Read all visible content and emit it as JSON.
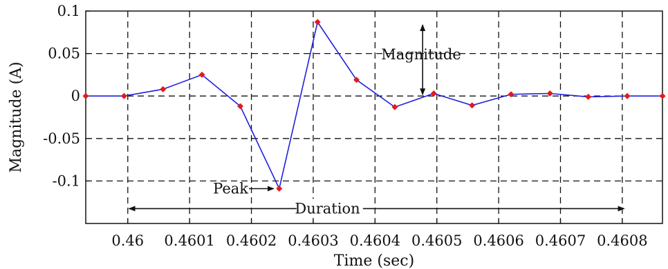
{
  "chart_data": {
    "type": "line",
    "xlabel": "Time (sec)",
    "ylabel": "Magnitude (A)",
    "xlim": [
      0.459932,
      0.460865
    ],
    "ylim": [
      -0.15,
      0.1
    ],
    "grid": true,
    "xticks": [
      0.46,
      0.4601,
      0.4602,
      0.4603,
      0.4604,
      0.4605,
      0.4606,
      0.4607,
      0.4608
    ],
    "xtick_labels": [
      "0.46",
      "0.4601",
      "0.4602",
      "0.4603",
      "0.4604",
      "0.4605",
      "0.4606",
      "0.4607",
      "0.4608"
    ],
    "yticks": [
      0.1,
      0.05,
      0,
      -0.05,
      -0.1
    ],
    "ytick_labels": [
      "0.1",
      "0.05",
      "0",
      "-0.05",
      "-0.1"
    ],
    "series": [
      {
        "line_color": "#1f1fe0",
        "marker_color": "#e31a1a",
        "x": [
          0.459932,
          0.459994,
          0.460057,
          0.46012,
          0.460182,
          0.460245,
          0.460307,
          0.46037,
          0.460432,
          0.460495,
          0.460557,
          0.46062,
          0.460683,
          0.460745,
          0.460808,
          0.460865
        ],
        "y": [
          0.0,
          0.0,
          0.008,
          0.025,
          -0.012,
          -0.109,
          0.087,
          0.019,
          -0.013,
          0.003,
          -0.011,
          0.002,
          0.003,
          -0.001,
          0.0,
          0.0
        ]
      }
    ],
    "annotations": {
      "magnitude": "Magnitude",
      "peak": "Peak",
      "duration": "Duration"
    }
  }
}
